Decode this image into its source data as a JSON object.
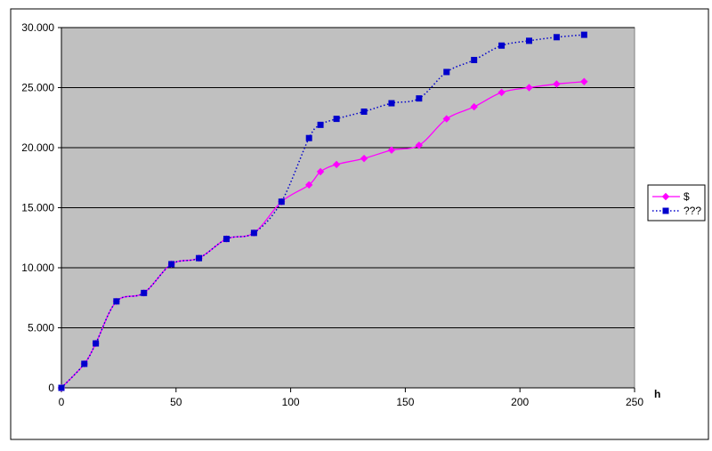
{
  "chart_data": {
    "type": "line",
    "title": "",
    "xlabel": "h",
    "ylabel": "",
    "xlim": [
      0,
      250
    ],
    "ylim": [
      0,
      30000
    ],
    "x_ticks": [
      0,
      50,
      100,
      150,
      200,
      250
    ],
    "x_tick_labels": [
      "0",
      "50",
      "100",
      "150",
      "200",
      "250"
    ],
    "y_ticks": [
      0,
      5000,
      10000,
      15000,
      20000,
      25000,
      30000
    ],
    "y_tick_labels": [
      "0",
      "5.000",
      "10.000",
      "15.000",
      "20.000",
      "25.000",
      "30.000"
    ],
    "grid": "horizontal",
    "legend": "right",
    "plot_background": "#c0c0c0",
    "series": [
      {
        "name": "$",
        "color": "#ff00ff",
        "marker": "diamond",
        "line_style": "solid",
        "x": [
          0,
          10,
          15,
          24,
          36,
          48,
          60,
          72,
          84,
          96,
          108,
          113,
          120,
          132,
          144,
          156,
          168,
          180,
          192,
          204,
          216,
          228
        ],
        "values": [
          0,
          2000,
          3700,
          7200,
          7900,
          10300,
          10800,
          12400,
          12900,
          15500,
          16900,
          18000,
          18600,
          19100,
          19800,
          20200,
          22400,
          23400,
          24600,
          25000,
          25300,
          25500
        ]
      },
      {
        "name": "???",
        "color": "#0000cc",
        "marker": "square",
        "line_style": "dotted",
        "x": [
          0,
          10,
          15,
          24,
          36,
          48,
          60,
          72,
          84,
          96,
          108,
          113,
          120,
          132,
          144,
          156,
          168,
          180,
          192,
          204,
          216,
          228
        ],
        "values": [
          0,
          2000,
          3700,
          7200,
          7900,
          10300,
          10800,
          12400,
          12900,
          15500,
          20800,
          21900,
          22400,
          23000,
          23700,
          24100,
          26300,
          27300,
          28500,
          28900,
          29200,
          29400
        ]
      }
    ]
  }
}
